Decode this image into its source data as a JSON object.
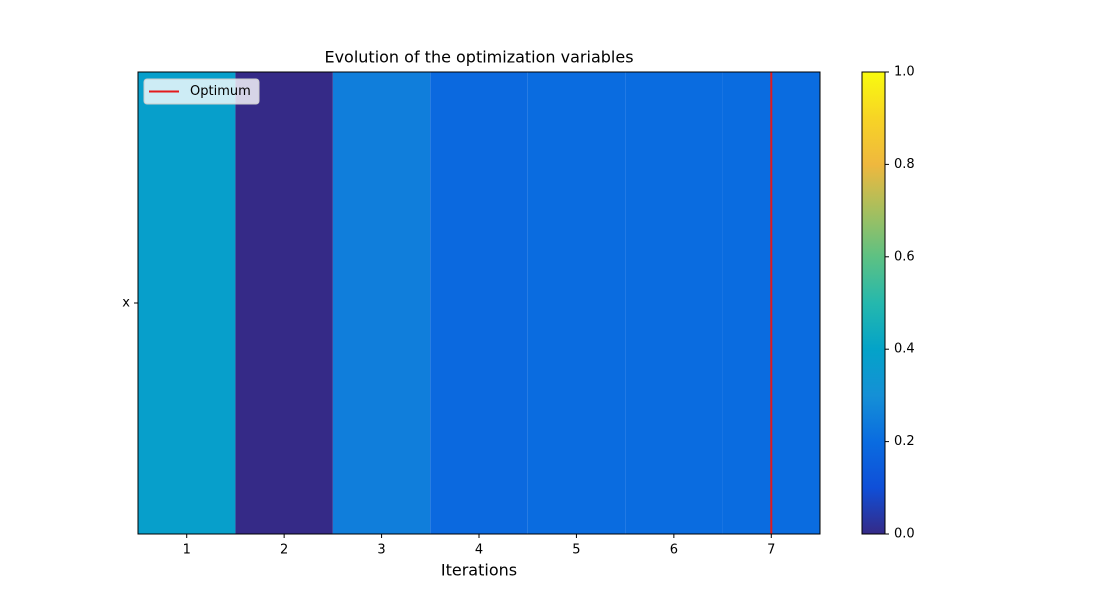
{
  "chart_data": {
    "type": "heatmap",
    "title": "Evolution of the optimization variables",
    "x_label": "Iterations",
    "x": [
      1,
      2,
      3,
      4,
      5,
      6,
      7
    ],
    "y_categories": [
      "x"
    ],
    "values": [
      [
        0.38,
        0.0,
        0.25,
        0.19,
        0.2,
        0.2,
        0.2
      ]
    ],
    "xlim": [
      0.5,
      7.5
    ],
    "xticks": [
      1,
      2,
      3,
      4,
      5,
      6,
      7
    ],
    "clim": [
      0,
      1
    ],
    "cticks": [
      {
        "value": 0,
        "label": "0.0"
      },
      {
        "value": 0.2,
        "label": "0.2"
      },
      {
        "value": 0.4,
        "label": "0.4"
      },
      {
        "value": 0.6,
        "label": "0.6"
      },
      {
        "value": 0.8,
        "label": "0.8"
      },
      {
        "value": 1,
        "label": "1.0"
      }
    ],
    "colormap": [
      "#352a87",
      "#0f4fd8",
      "#0a6ce0",
      "#1590d6",
      "#04a3c8",
      "#25b8ad",
      "#5dc183",
      "#a6bf5e",
      "#efb83e",
      "#f7d425",
      "#f9fb0e"
    ],
    "optimum": {
      "name": "Optimum",
      "x": 7,
      "color": "#e31a1c"
    },
    "legend": "upper left"
  }
}
